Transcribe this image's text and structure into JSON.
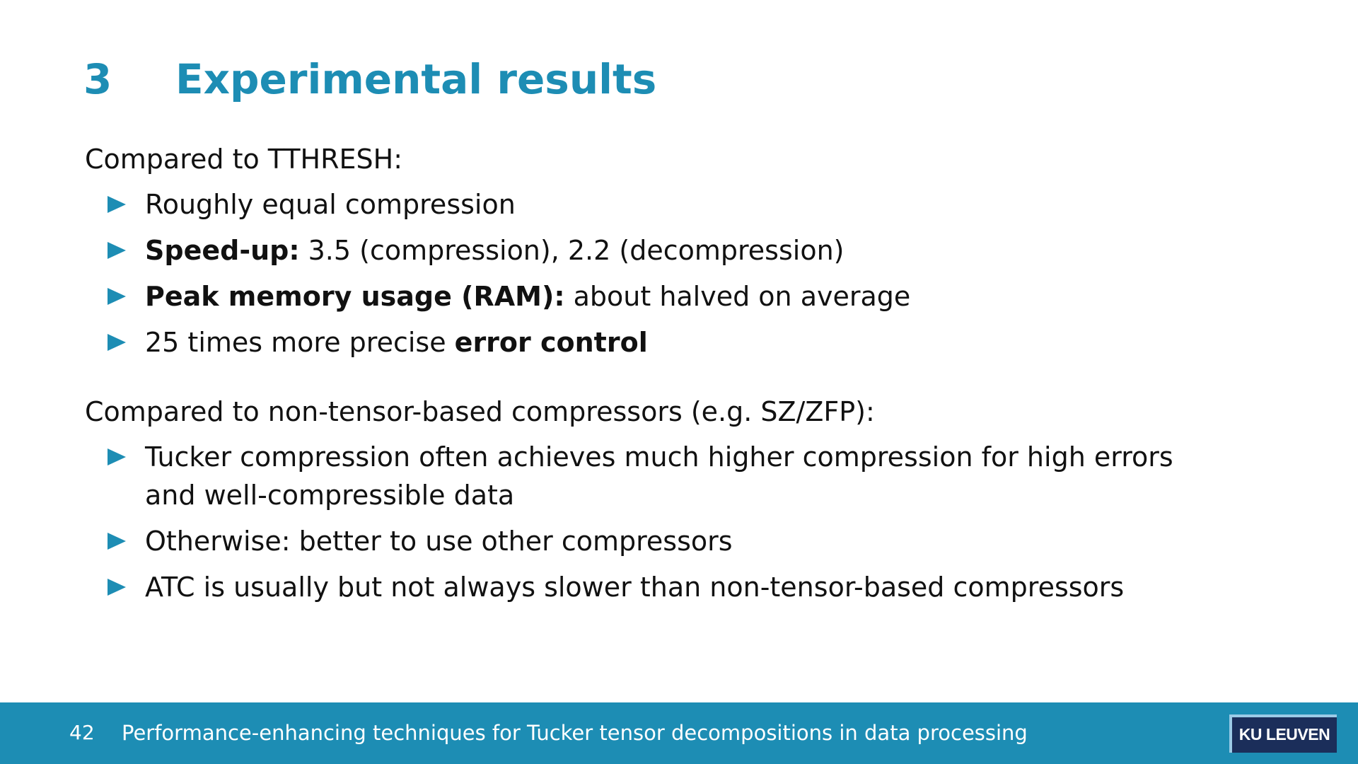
{
  "title": {
    "number": "3",
    "text": "Experimental results"
  },
  "sections": [
    {
      "heading": "Compared to TTHRESH:",
      "items": [
        {
          "bold": "",
          "text": "Roughly equal compression",
          "bold_after": ""
        },
        {
          "bold": "Speed-up:",
          "text": " 3.5 (compression), 2.2 (decompression)",
          "bold_after": ""
        },
        {
          "bold": "Peak memory usage (RAM):",
          "text": " about halved on average",
          "bold_after": ""
        },
        {
          "bold": "",
          "text": "25 times more precise ",
          "bold_after": "error control"
        }
      ]
    },
    {
      "heading": "Compared to non-tensor-based compressors (e.g. SZ/ZFP):",
      "items": [
        {
          "text": "Tucker compression often achieves much higher compression for high errors and well-compressible data"
        },
        {
          "text": "Otherwise: better to use other compressors"
        },
        {
          "text": "ATC is usually but not always slower than non-tensor-based compressors"
        }
      ]
    }
  ],
  "footer": {
    "page_number": "42",
    "text": "Performance-enhancing techniques for Tucker tensor decompositions in data processing",
    "logo": "KU LEUVEN"
  },
  "colors": {
    "accent": "#1d8db4",
    "logo_bg": "#1b2e5a"
  }
}
